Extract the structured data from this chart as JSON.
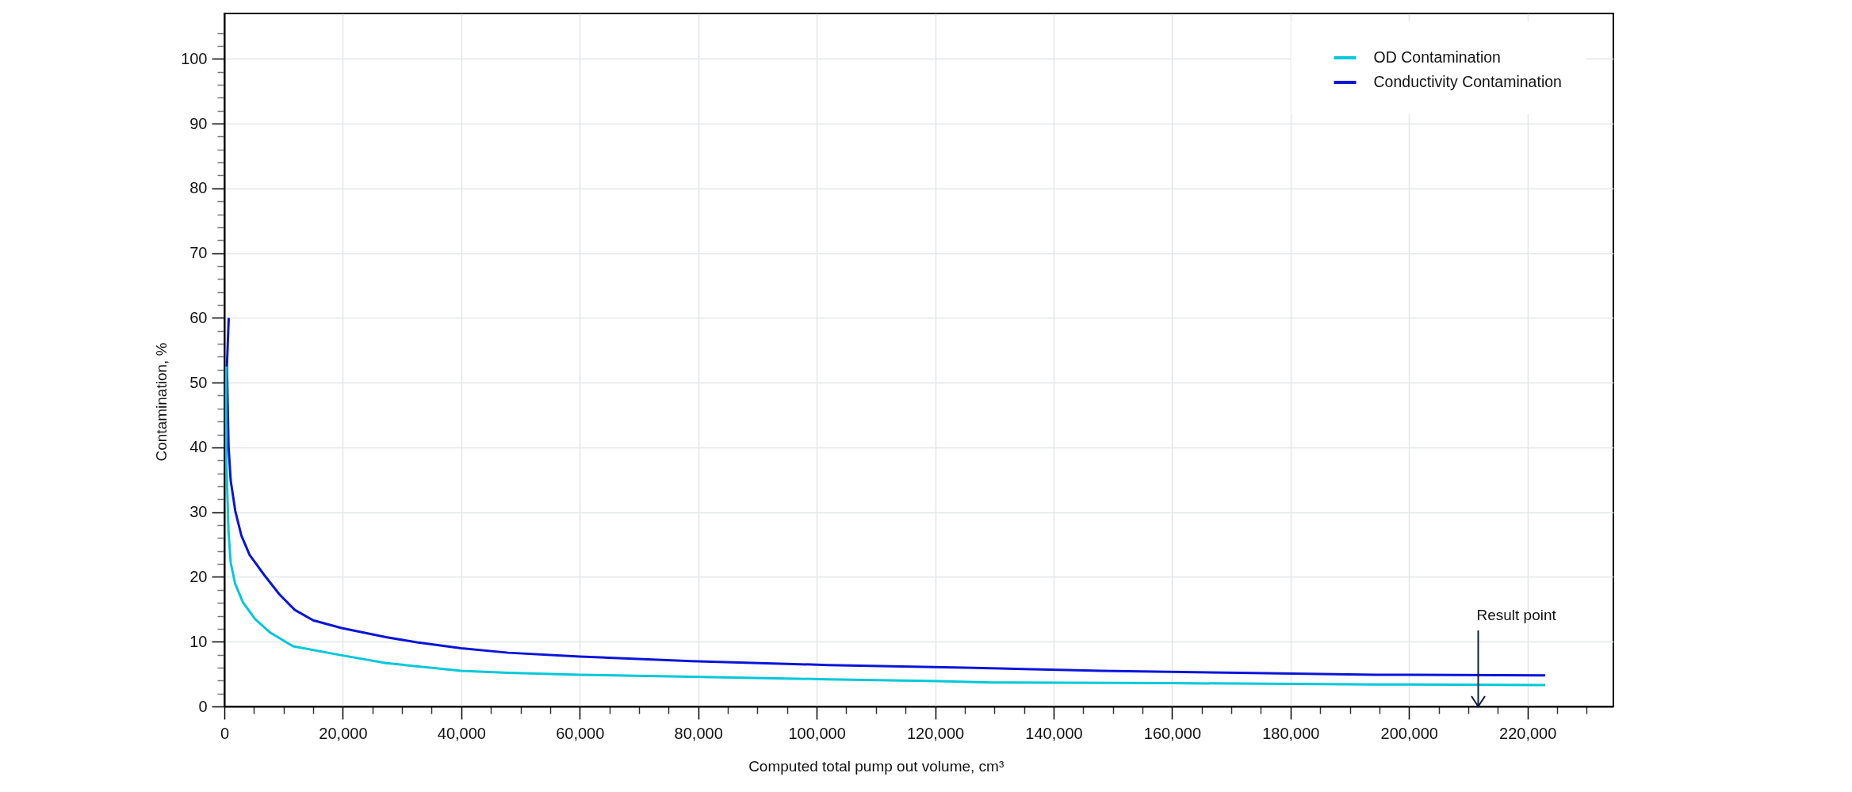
{
  "chart_data": {
    "type": "line",
    "xlabel": "Computed total pump out volume, cm³",
    "ylabel": "Contamination, %",
    "xlim": [
      0,
      234500
    ],
    "ylim": [
      0,
      107
    ],
    "xticks": [
      0,
      {
        "value": 5000,
        "label": null
      },
      {
        "value": 10000,
        "label": null
      },
      {
        "value": 15000,
        "label": null
      },
      {
        "value": 20000,
        "label": "20,000"
      },
      {
        "value": 25000,
        "label": null
      },
      {
        "value": 30000,
        "label": null
      },
      {
        "value": 35000,
        "label": null
      },
      {
        "value": 40000,
        "label": "40,000"
      },
      {
        "value": 45000,
        "label": null
      },
      {
        "value": 50000,
        "label": null
      },
      {
        "value": 55000,
        "label": null
      },
      {
        "value": 60000,
        "label": "60,000"
      },
      {
        "value": 65000,
        "label": null
      },
      {
        "value": 70000,
        "label": null
      },
      {
        "value": 75000,
        "label": null
      },
      {
        "value": 80000,
        "label": "80,000"
      },
      {
        "value": 85000,
        "label": null
      },
      {
        "value": 90000,
        "label": null
      },
      {
        "value": 95000,
        "label": null
      },
      {
        "value": 100000,
        "label": "100,000"
      },
      {
        "value": 105000,
        "label": null
      },
      {
        "value": 110000,
        "label": null
      },
      {
        "value": 115000,
        "label": null
      },
      {
        "value": 120000,
        "label": "120,000"
      },
      {
        "value": 125000,
        "label": null
      },
      {
        "value": 130000,
        "label": null
      },
      {
        "value": 135000,
        "label": null
      },
      {
        "value": 140000,
        "label": "140,000"
      },
      {
        "value": 145000,
        "label": null
      },
      {
        "value": 150000,
        "label": null
      },
      {
        "value": 155000,
        "label": null
      },
      {
        "value": 160000,
        "label": "160,000"
      },
      {
        "value": 165000,
        "label": null
      },
      {
        "value": 170000,
        "label": null
      },
      {
        "value": 175000,
        "label": null
      },
      {
        "value": 180000,
        "label": "180,000"
      },
      {
        "value": 185000,
        "label": null
      },
      {
        "value": 190000,
        "label": null
      },
      {
        "value": 195000,
        "label": null
      },
      {
        "value": 200000,
        "label": "200,000"
      },
      {
        "value": 205000,
        "label": null
      },
      {
        "value": 210000,
        "label": null
      },
      {
        "value": 215000,
        "label": null
      },
      {
        "value": 220000,
        "label": "220,000"
      },
      {
        "value": 225000,
        "label": null
      },
      {
        "value": 230000,
        "label": null
      }
    ],
    "yticks": [
      0,
      {
        "value": 2,
        "label": null
      },
      {
        "value": 4,
        "label": null
      },
      {
        "value": 6,
        "label": null
      },
      {
        "value": 8,
        "label": null
      },
      10,
      {
        "value": 12,
        "label": null
      },
      {
        "value": 14,
        "label": null
      },
      {
        "value": 16,
        "label": null
      },
      {
        "value": 18,
        "label": null
      },
      20,
      {
        "value": 22,
        "label": null
      },
      {
        "value": 24,
        "label": null
      },
      {
        "value": 26,
        "label": null
      },
      {
        "value": 28,
        "label": null
      },
      30,
      {
        "value": 32,
        "label": null
      },
      {
        "value": 34,
        "label": null
      },
      {
        "value": 36,
        "label": null
      },
      {
        "value": 38,
        "label": null
      },
      40,
      {
        "value": 42,
        "label": null
      },
      {
        "value": 44,
        "label": null
      },
      {
        "value": 46,
        "label": null
      },
      {
        "value": 48,
        "label": null
      },
      50,
      {
        "value": 52,
        "label": null
      },
      {
        "value": 54,
        "label": null
      },
      {
        "value": 56,
        "label": null
      },
      {
        "value": 58,
        "label": null
      },
      60,
      {
        "value": 62,
        "label": null
      },
      {
        "value": 64,
        "label": null
      },
      {
        "value": 66,
        "label": null
      },
      {
        "value": 68,
        "label": null
      },
      70,
      {
        "value": 72,
        "label": null
      },
      {
        "value": 74,
        "label": null
      },
      {
        "value": 76,
        "label": null
      },
      {
        "value": 78,
        "label": null
      },
      80,
      {
        "value": 82,
        "label": null
      },
      {
        "value": 84,
        "label": null
      },
      {
        "value": 86,
        "label": null
      },
      {
        "value": 88,
        "label": null
      },
      90,
      {
        "value": 92,
        "label": null
      },
      {
        "value": 94,
        "label": null
      },
      {
        "value": 96,
        "label": null
      },
      {
        "value": 98,
        "label": null
      },
      100,
      {
        "value": 102,
        "label": null
      },
      {
        "value": 104,
        "label": null
      }
    ],
    "grid": true,
    "legend": "top right",
    "line_style": "solid",
    "series": [
      {
        "name": "OD Contamination",
        "color": "#00c8d8",
        "x": [
          330,
          300,
          350,
          500,
          700,
          1070,
          1840,
          3130,
          5190,
          7750,
          11600,
          19800,
          27300,
          40000,
          47900,
          60000,
          78800,
          101900,
          120400,
          129600,
          159700,
          194300,
          223000
        ],
        "values": [
          52.5,
          45,
          38,
          33,
          27,
          22.2,
          18.9,
          16.1,
          13.5,
          11.4,
          9.3,
          7.9,
          6.7,
          5.5,
          5.2,
          4.9,
          4.6,
          4.2,
          3.9,
          3.7,
          3.6,
          3.4,
          3.3
        ]
      },
      {
        "name": "Conductivity Contamination",
        "color": "#0a14d8",
        "x": [
          735,
          430,
          710,
          1070,
          1840,
          2870,
          4260,
          6730,
          9300,
          11900,
          15000,
          19800,
          27300,
          32500,
          40000,
          47900,
          60000,
          78800,
          101900,
          125000,
          148100,
          171200,
          194300,
          223000
        ],
        "values": [
          60,
          52.5,
          40.1,
          34.9,
          30.2,
          26.4,
          23.4,
          20.3,
          17.3,
          14.9,
          13.3,
          12.1,
          10.7,
          9.9,
          9.0,
          8.3,
          7.7,
          7.0,
          6.4,
          6.0,
          5.5,
          5.2,
          4.9,
          4.8
        ]
      }
    ],
    "annotations": [
      "Result point"
    ]
  }
}
